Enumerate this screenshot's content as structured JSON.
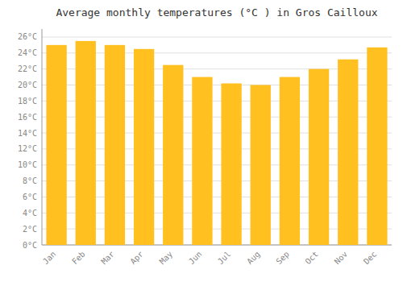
{
  "chart_data": {
    "type": "bar",
    "title": "Average monthly temperatures (°C ) in Gros Cailloux",
    "categories": [
      "Jan",
      "Feb",
      "Mar",
      "Apr",
      "May",
      "Jun",
      "Jul",
      "Aug",
      "Sep",
      "Oct",
      "Nov",
      "Dec"
    ],
    "values": [
      25.0,
      25.5,
      25.0,
      24.5,
      22.5,
      21.0,
      20.2,
      20.0,
      21.0,
      22.0,
      23.2,
      24.7
    ],
    "color": "#FFC020",
    "ylim": [
      0,
      27
    ],
    "yticks": [
      {
        "value": 0,
        "label": "0°C"
      },
      {
        "value": 2,
        "label": "2°C"
      },
      {
        "value": 4,
        "label": "4°C"
      },
      {
        "value": 6,
        "label": "6°C"
      },
      {
        "value": 8,
        "label": "8°C"
      },
      {
        "value": 10,
        "label": "10°C"
      },
      {
        "value": 12,
        "label": "12°C"
      },
      {
        "value": 14,
        "label": "14°C"
      },
      {
        "value": 16,
        "label": "16°C"
      },
      {
        "value": 18,
        "label": "18°C"
      },
      {
        "value": 20,
        "label": "20°C"
      },
      {
        "value": 22,
        "label": "22°C"
      },
      {
        "value": 24,
        "label": "24°C"
      },
      {
        "value": 26,
        "label": "26°C"
      }
    ],
    "grid": true
  }
}
